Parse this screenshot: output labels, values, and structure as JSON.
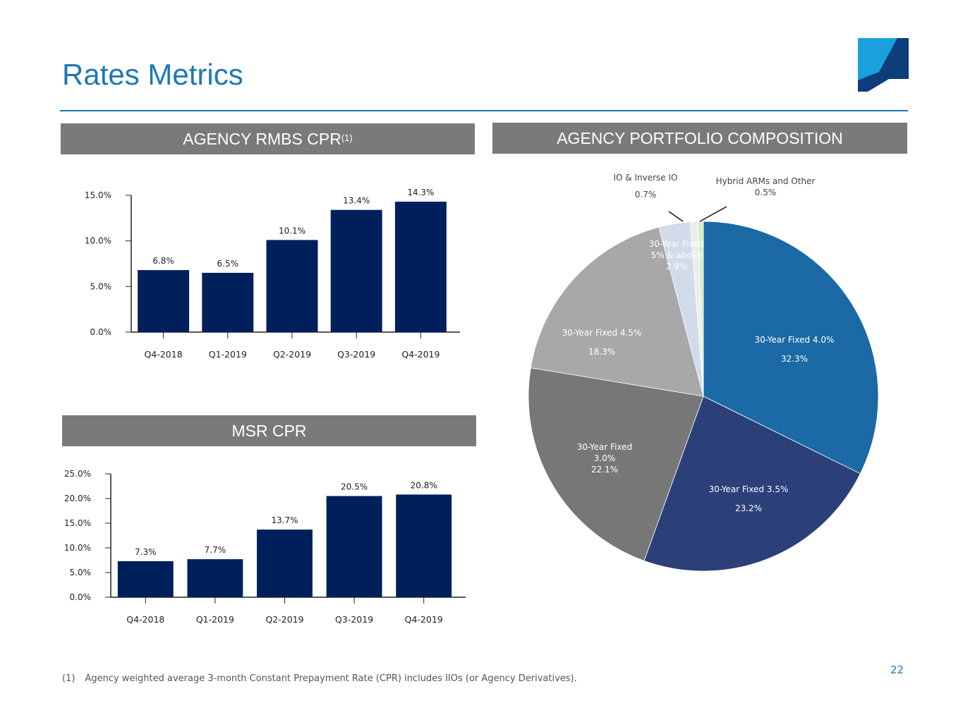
{
  "page": {
    "title": "Rates Metrics",
    "page_number": "22",
    "footnote_marker": "(1)",
    "footnote_text": "Agency weighted average 3-month Constant Prepayment Rate (CPR) includes IIOs (or Agency Derivatives)."
  },
  "colors": {
    "title": "#1f77b4",
    "banner": "#7a7a7a",
    "bar": "#00205b"
  },
  "banners": {
    "agency_cpr": {
      "label": "AGENCY RMBS CPR",
      "superscript": "(1)"
    },
    "msr_cpr": {
      "label": "MSR CPR"
    },
    "composition": {
      "label": "AGENCY PORTFOLIO COMPOSITION"
    }
  },
  "chart_data": [
    {
      "type": "bar",
      "title": "AGENCY RMBS CPR",
      "categories": [
        "Q4-2018",
        "Q1-2019",
        "Q2-2019",
        "Q3-2019",
        "Q4-2019"
      ],
      "values": [
        6.8,
        6.5,
        10.1,
        13.4,
        14.3
      ],
      "value_labels": [
        "6.8%",
        "6.5%",
        "10.1%",
        "13.4%",
        "14.3%"
      ],
      "yticks": [
        "0.0%",
        "5.0%",
        "10.0%",
        "15.0%"
      ],
      "ytick_values": [
        0,
        5,
        10,
        15
      ],
      "ylim": [
        0,
        15
      ],
      "grid": false,
      "color": "#00205b"
    },
    {
      "type": "bar",
      "title": "MSR CPR",
      "categories": [
        "Q4-2018",
        "Q1-2019",
        "Q2-2019",
        "Q3-2019",
        "Q4-2019"
      ],
      "values": [
        7.3,
        7.7,
        13.7,
        20.5,
        20.8
      ],
      "value_labels": [
        "7.3%",
        "7.7%",
        "13.7%",
        "20.5%",
        "20.8%"
      ],
      "yticks": [
        "0.0%",
        "5.0%",
        "10.0%",
        "15.0%",
        "20.0%",
        "25.0%"
      ],
      "ytick_values": [
        0,
        5,
        10,
        15,
        20,
        25
      ],
      "ylim": [
        0,
        25
      ],
      "grid": false,
      "color": "#00205b"
    },
    {
      "type": "pie",
      "title": "AGENCY PORTFOLIO COMPOSITION",
      "slices": [
        {
          "label": [
            "30-Year Fixed 4.0%"
          ],
          "value": 32.3,
          "value_label": "32.3%",
          "color": "#1b6aa5"
        },
        {
          "label": [
            "30-Year Fixed 3.5%"
          ],
          "value": 23.2,
          "value_label": "23.2%",
          "color": "#2b3f79"
        },
        {
          "label": [
            "30-Year Fixed",
            "3.0%"
          ],
          "value": 22.1,
          "value_label": "22.1%",
          "color": "#777777"
        },
        {
          "label": [
            "30-Year Fixed 4.5%"
          ],
          "value": 18.3,
          "value_label": "18.3%",
          "color": "#a8a8a8"
        },
        {
          "label": [
            "30-Year Fixed",
            "5% & above"
          ],
          "value": 2.9,
          "value_label": "2.9%",
          "color": "#d1dbea"
        },
        {
          "label": [
            "IO & Inverse IO"
          ],
          "value": 0.7,
          "value_label": "0.7%",
          "color": "#ededed"
        },
        {
          "label": [
            "Hybrid ARMs and Other"
          ],
          "value": 0.5,
          "value_label": "0.5%",
          "color": "#d7ecc0"
        }
      ]
    }
  ]
}
